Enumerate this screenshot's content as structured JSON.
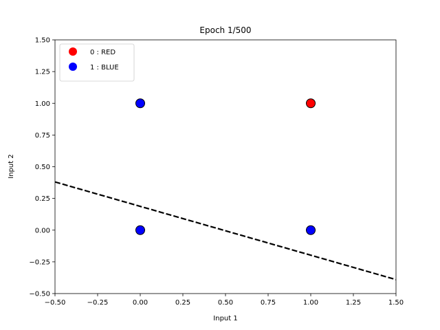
{
  "chart_data": {
    "type": "scatter",
    "title": "Epoch 1/500",
    "xlabel": "Input 1",
    "ylabel": "Input 2",
    "xlim": [
      -0.5,
      1.5
    ],
    "ylim": [
      -0.5,
      1.5
    ],
    "xticks": [
      -0.5,
      -0.25,
      0.0,
      0.25,
      0.5,
      0.75,
      1.0,
      1.25,
      1.5
    ],
    "xtick_labels": [
      "−0.50",
      "−0.25",
      "0.00",
      "0.25",
      "0.50",
      "0.75",
      "1.00",
      "1.25",
      "1.50"
    ],
    "yticks": [
      -0.5,
      -0.25,
      0.0,
      0.25,
      0.5,
      0.75,
      1.0,
      1.25,
      1.5
    ],
    "ytick_labels": [
      "−0.50",
      "−0.25",
      "0.00",
      "0.25",
      "0.50",
      "0.75",
      "1.00",
      "1.25",
      "1.50"
    ],
    "grid": false,
    "legend_position": "top-left",
    "series": [
      {
        "name": "0 : RED",
        "color": "#ff0000",
        "points": [
          [
            1,
            1
          ]
        ]
      },
      {
        "name": "1 : BLUE",
        "color": "#0000ff",
        "points": [
          [
            0,
            1
          ],
          [
            0,
            0
          ],
          [
            1,
            0
          ]
        ]
      }
    ],
    "decision_boundary": {
      "style": "dashed",
      "color": "#000000",
      "x": [
        -0.5,
        1.5
      ],
      "y": [
        0.38,
        -0.39
      ]
    }
  }
}
